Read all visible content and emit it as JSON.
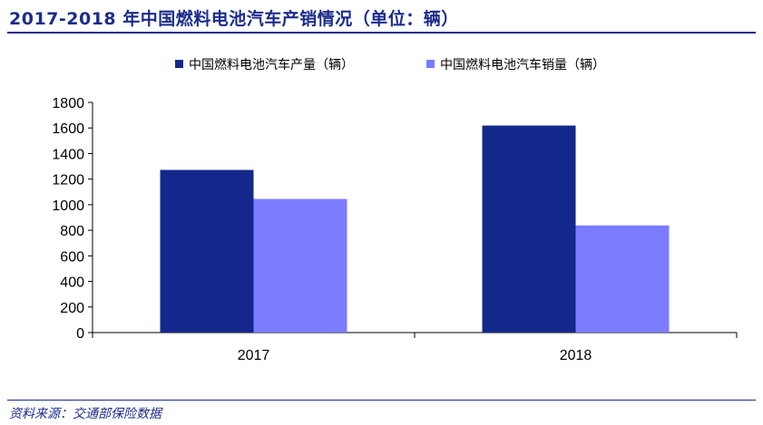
{
  "title": "2017-2018 年中国燃料电池汽车产销情况（单位：辆）",
  "source": "资料来源：交通部保险数据",
  "colors": {
    "title": "#1b2c8c",
    "production": "#14288c",
    "sales": "#7b7cff"
  },
  "chart_data": {
    "type": "bar",
    "categories": [
      "2017",
      "2018"
    ],
    "series": [
      {
        "name": "中国燃料电池汽车产量（辆）",
        "values": [
          1272,
          1619
        ]
      },
      {
        "name": "中国燃料电池汽车销量（辆）",
        "values": [
          1045,
          838
        ]
      }
    ],
    "yticks": [
      0,
      200,
      400,
      600,
      800,
      1000,
      1200,
      1400,
      1600,
      1800
    ],
    "ylim": [
      0,
      1800
    ],
    "grid": false,
    "legend": "top"
  }
}
